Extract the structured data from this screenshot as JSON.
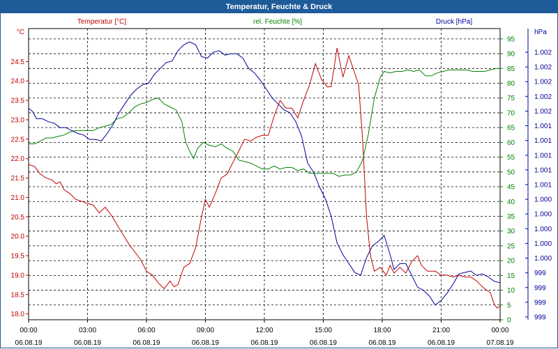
{
  "title": "Temperatur, Feuchte & Druck",
  "chart_data": {
    "type": "line",
    "title": "Temperatur, Feuchte & Druck",
    "x_ticks": [
      {
        "h": 0,
        "time": "00:00",
        "date": "06.08.19"
      },
      {
        "h": 3,
        "time": "03:00",
        "date": "06.08.19"
      },
      {
        "h": 6,
        "time": "06:00",
        "date": "06.08.19"
      },
      {
        "h": 9,
        "time": "09:00",
        "date": "06.08.19"
      },
      {
        "h": 12,
        "time": "12:00",
        "date": "06.08.19"
      },
      {
        "h": 15,
        "time": "15:00",
        "date": "06.08.19"
      },
      {
        "h": 18,
        "time": "18:00",
        "date": "06.08.19"
      },
      {
        "h": 21,
        "time": "21:00",
        "date": "06.08.19"
      },
      {
        "h": 24,
        "time": "00:00",
        "date": "07.08.19"
      }
    ],
    "x_range": [
      0,
      24
    ],
    "axes": {
      "temperature": {
        "label": "Temperatur [°C]",
        "unit": "°C",
        "range": [
          17.85,
          25.35
        ],
        "ticks": [
          "18.0",
          "18.5",
          "19.0",
          "19.5",
          "20.0",
          "20.5",
          "21.0",
          "21.5",
          "22.0",
          "22.5",
          "23.0",
          "23.5",
          "24.0",
          "24.5"
        ],
        "tick_values": [
          18.0,
          18.5,
          19.0,
          19.5,
          20.0,
          20.5,
          21.0,
          21.5,
          22.0,
          22.5,
          23.0,
          23.5,
          24.0,
          24.5
        ],
        "color": "#c00000"
      },
      "humidity": {
        "label": "rel. Feuchte [%]",
        "unit": "%",
        "range": [
          0,
          98.5
        ],
        "ticks": [
          "0",
          "5",
          "10",
          "15",
          "20",
          "25",
          "30",
          "35",
          "40",
          "45",
          "50",
          "55",
          "60",
          "65",
          "70",
          "75",
          "80",
          "85",
          "90",
          "95"
        ],
        "tick_values": [
          0,
          5,
          10,
          15,
          20,
          25,
          30,
          35,
          40,
          45,
          50,
          55,
          60,
          65,
          70,
          75,
          80,
          85,
          90,
          95
        ],
        "color": "#008000"
      },
      "pressure": {
        "label": "Druck [hPa]",
        "unit": "hPa",
        "ticks": [
          "1.002",
          "1.002",
          "1.002",
          "1.002",
          "1.002",
          "1.001",
          "1.001",
          "1.001",
          "1.001",
          "1.001",
          "1.000",
          "1.000",
          "1.000",
          "1.000",
          "1.000",
          "999",
          "999",
          "999",
          "999"
        ],
        "color": "#000099"
      }
    },
    "series": [
      {
        "name": "Temperatur [°C]",
        "axis": "temperature",
        "color": "#c00000",
        "points": [
          [
            0.0,
            21.85
          ],
          [
            0.3,
            21.8
          ],
          [
            0.6,
            21.6
          ],
          [
            0.9,
            21.5
          ],
          [
            1.2,
            21.45
          ],
          [
            1.4,
            21.35
          ],
          [
            1.6,
            21.4
          ],
          [
            1.8,
            21.2
          ],
          [
            2.1,
            21.1
          ],
          [
            2.4,
            20.95
          ],
          [
            2.7,
            20.9
          ],
          [
            3.0,
            20.85
          ],
          [
            3.3,
            20.8
          ],
          [
            3.6,
            20.6
          ],
          [
            3.9,
            20.75
          ],
          [
            4.2,
            20.55
          ],
          [
            4.5,
            20.3
          ],
          [
            4.8,
            20.05
          ],
          [
            5.1,
            19.8
          ],
          [
            5.4,
            19.6
          ],
          [
            5.7,
            19.4
          ],
          [
            6.0,
            19.1
          ],
          [
            6.3,
            19.0
          ],
          [
            6.6,
            18.8
          ],
          [
            6.9,
            18.65
          ],
          [
            7.2,
            18.85
          ],
          [
            7.4,
            18.7
          ],
          [
            7.6,
            18.75
          ],
          [
            7.9,
            19.2
          ],
          [
            8.2,
            19.3
          ],
          [
            8.5,
            19.7
          ],
          [
            8.8,
            20.5
          ],
          [
            9.0,
            20.95
          ],
          [
            9.2,
            20.75
          ],
          [
            9.5,
            21.1
          ],
          [
            9.8,
            21.5
          ],
          [
            10.1,
            21.6
          ],
          [
            10.4,
            21.9
          ],
          [
            10.7,
            22.2
          ],
          [
            11.0,
            22.5
          ],
          [
            11.3,
            22.45
          ],
          [
            11.6,
            22.55
          ],
          [
            11.9,
            22.6
          ],
          [
            12.2,
            22.6
          ],
          [
            12.5,
            23.1
          ],
          [
            12.8,
            23.5
          ],
          [
            13.1,
            23.3
          ],
          [
            13.4,
            23.3
          ],
          [
            13.7,
            23.05
          ],
          [
            14.0,
            23.5
          ],
          [
            14.3,
            23.9
          ],
          [
            14.6,
            24.45
          ],
          [
            14.9,
            24.05
          ],
          [
            15.2,
            23.85
          ],
          [
            15.4,
            23.85
          ],
          [
            15.7,
            24.85
          ],
          [
            16.0,
            24.1
          ],
          [
            16.3,
            24.65
          ],
          [
            16.6,
            24.2
          ],
          [
            16.8,
            23.9
          ],
          [
            17.0,
            22.5
          ],
          [
            17.2,
            20.5
          ],
          [
            17.4,
            19.5
          ],
          [
            17.6,
            19.1
          ],
          [
            17.9,
            19.2
          ],
          [
            18.2,
            19.0
          ],
          [
            18.4,
            19.25
          ],
          [
            18.6,
            19.05
          ],
          [
            18.9,
            19.2
          ],
          [
            19.2,
            19.05
          ],
          [
            19.5,
            19.35
          ],
          [
            19.8,
            19.5
          ],
          [
            20.0,
            19.25
          ],
          [
            20.3,
            19.1
          ],
          [
            20.7,
            19.1
          ],
          [
            21.0,
            19.0
          ],
          [
            21.3,
            19.0
          ],
          [
            21.6,
            18.95
          ],
          [
            21.9,
            19.0
          ],
          [
            22.2,
            18.95
          ],
          [
            22.5,
            18.95
          ],
          [
            22.8,
            18.85
          ],
          [
            23.0,
            18.75
          ],
          [
            23.2,
            18.65
          ],
          [
            23.5,
            18.55
          ],
          [
            23.7,
            18.25
          ],
          [
            23.85,
            18.15
          ],
          [
            24.0,
            18.2
          ]
        ]
      },
      {
        "name": "rel. Feuchte [%]",
        "axis": "humidity",
        "color": "#008000",
        "points": [
          [
            0.0,
            59.5
          ],
          [
            0.3,
            59.5
          ],
          [
            0.6,
            60.5
          ],
          [
            0.9,
            61.5
          ],
          [
            1.2,
            61.5
          ],
          [
            1.5,
            62.0
          ],
          [
            1.8,
            62.5
          ],
          [
            2.1,
            63.5
          ],
          [
            2.4,
            64.0
          ],
          [
            2.7,
            64.0
          ],
          [
            3.0,
            64.0
          ],
          [
            3.3,
            64.0
          ],
          [
            3.6,
            65.0
          ],
          [
            3.9,
            65.5
          ],
          [
            4.2,
            66.0
          ],
          [
            4.5,
            68.0
          ],
          [
            4.8,
            68.5
          ],
          [
            5.1,
            70.0
          ],
          [
            5.4,
            72.0
          ],
          [
            5.7,
            73.0
          ],
          [
            6.0,
            73.5
          ],
          [
            6.3,
            74.5
          ],
          [
            6.6,
            75.0
          ],
          [
            6.9,
            73.0
          ],
          [
            7.2,
            72.0
          ],
          [
            7.5,
            71.0
          ],
          [
            7.8,
            67.0
          ],
          [
            8.0,
            60.0
          ],
          [
            8.2,
            57.0
          ],
          [
            8.4,
            54.5
          ],
          [
            8.6,
            58.0
          ],
          [
            8.9,
            60.0
          ],
          [
            9.2,
            59.0
          ],
          [
            9.5,
            58.5
          ],
          [
            9.8,
            59.5
          ],
          [
            10.1,
            58.0
          ],
          [
            10.4,
            57.0
          ],
          [
            10.7,
            54.0
          ],
          [
            11.0,
            53.5
          ],
          [
            11.3,
            53.0
          ],
          [
            11.6,
            52.0
          ],
          [
            11.9,
            51.0
          ],
          [
            12.2,
            51.0
          ],
          [
            12.5,
            52.0
          ],
          [
            12.8,
            51.0
          ],
          [
            13.1,
            51.5
          ],
          [
            13.4,
            51.5
          ],
          [
            13.7,
            50.5
          ],
          [
            14.0,
            51.0
          ],
          [
            14.3,
            49.5
          ],
          [
            14.6,
            49.5
          ],
          [
            14.9,
            49.5
          ],
          [
            15.2,
            49.5
          ],
          [
            15.5,
            49.5
          ],
          [
            15.8,
            48.5
          ],
          [
            16.1,
            49.0
          ],
          [
            16.4,
            49.0
          ],
          [
            16.7,
            50.0
          ],
          [
            17.0,
            54.0
          ],
          [
            17.3,
            63.0
          ],
          [
            17.6,
            75.0
          ],
          [
            17.9,
            82.0
          ],
          [
            18.1,
            84.0
          ],
          [
            18.4,
            83.5
          ],
          [
            18.7,
            84.0
          ],
          [
            19.0,
            84.0
          ],
          [
            19.3,
            84.5
          ],
          [
            19.6,
            84.0
          ],
          [
            19.9,
            84.5
          ],
          [
            20.2,
            82.5
          ],
          [
            20.5,
            82.5
          ],
          [
            20.8,
            83.5
          ],
          [
            21.1,
            84.0
          ],
          [
            21.4,
            84.5
          ],
          [
            21.7,
            84.5
          ],
          [
            22.0,
            84.5
          ],
          [
            22.3,
            84.5
          ],
          [
            22.6,
            84.0
          ],
          [
            22.9,
            84.0
          ],
          [
            23.2,
            84.0
          ],
          [
            23.5,
            84.5
          ],
          [
            23.8,
            85.0
          ],
          [
            24.0,
            85.0
          ]
        ]
      },
      {
        "name": "Druck [hPa]",
        "axis": "pressure",
        "color": "#000099",
        "points": [
          [
            0.0,
            71.5
          ],
          [
            0.2,
            70.5
          ],
          [
            0.4,
            68.0
          ],
          [
            0.7,
            68.0
          ],
          [
            1.0,
            67.0
          ],
          [
            1.3,
            66.5
          ],
          [
            1.6,
            65.0
          ],
          [
            1.9,
            65.0
          ],
          [
            2.2,
            64.0
          ],
          [
            2.5,
            63.0
          ],
          [
            2.8,
            62.5
          ],
          [
            3.1,
            61.0
          ],
          [
            3.4,
            61.0
          ],
          [
            3.7,
            60.5
          ],
          [
            4.0,
            63.0
          ],
          [
            4.3,
            66.0
          ],
          [
            4.6,
            70.0
          ],
          [
            4.9,
            73.0
          ],
          [
            5.2,
            76.0
          ],
          [
            5.5,
            78.0
          ],
          [
            5.8,
            79.5
          ],
          [
            6.1,
            80.0
          ],
          [
            6.4,
            83.0
          ],
          [
            6.7,
            85.0
          ],
          [
            7.0,
            87.0
          ],
          [
            7.3,
            87.5
          ],
          [
            7.6,
            91.0
          ],
          [
            7.9,
            93.0
          ],
          [
            8.2,
            94.0
          ],
          [
            8.5,
            93.0
          ],
          [
            8.8,
            89.0
          ],
          [
            9.1,
            88.5
          ],
          [
            9.4,
            90.5
          ],
          [
            9.7,
            91.0
          ],
          [
            10.0,
            89.5
          ],
          [
            10.3,
            90.0
          ],
          [
            10.6,
            90.0
          ],
          [
            10.9,
            88.5
          ],
          [
            11.2,
            85.0
          ],
          [
            11.5,
            83.5
          ],
          [
            11.8,
            81.0
          ],
          [
            12.1,
            78.0
          ],
          [
            12.4,
            75.0
          ],
          [
            12.7,
            73.0
          ],
          [
            13.0,
            71.0
          ],
          [
            13.3,
            70.0
          ],
          [
            13.6,
            67.0
          ],
          [
            13.9,
            62.0
          ],
          [
            14.2,
            53.0
          ],
          [
            14.5,
            50.0
          ],
          [
            14.8,
            45.0
          ],
          [
            15.1,
            41.0
          ],
          [
            15.4,
            35.0
          ],
          [
            15.7,
            26.0
          ],
          [
            16.0,
            22.0
          ],
          [
            16.3,
            19.0
          ],
          [
            16.6,
            16.0
          ],
          [
            16.9,
            15.0
          ],
          [
            17.2,
            21.0
          ],
          [
            17.5,
            25.0
          ],
          [
            17.8,
            26.5
          ],
          [
            18.1,
            28.5
          ],
          [
            18.4,
            22.0
          ],
          [
            18.6,
            17.0
          ],
          [
            18.9,
            19.0
          ],
          [
            19.2,
            19.0
          ],
          [
            19.5,
            15.0
          ],
          [
            19.8,
            11.0
          ],
          [
            20.1,
            10.0
          ],
          [
            20.4,
            8.0
          ],
          [
            20.7,
            5.0
          ],
          [
            21.0,
            6.5
          ],
          [
            21.3,
            9.0
          ],
          [
            21.6,
            12.0
          ],
          [
            21.9,
            15.5
          ],
          [
            22.2,
            16.0
          ],
          [
            22.5,
            16.5
          ],
          [
            22.8,
            15.0
          ],
          [
            23.1,
            15.5
          ],
          [
            23.4,
            14.5
          ],
          [
            23.7,
            13.0
          ],
          [
            24.0,
            12.5
          ]
        ]
      }
    ]
  }
}
